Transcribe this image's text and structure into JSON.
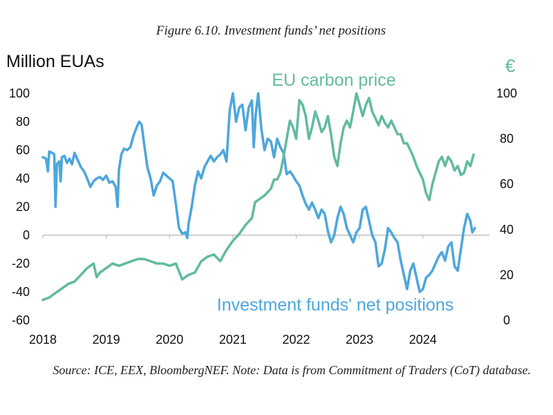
{
  "figure_title": "Figure 6.10. Investment funds’ net positions",
  "caption": "Source: ICE, EEX, BloombergNEF. Note: Data is from Commitment of Traders (CoT) database.",
  "colors": {
    "positions": "#4ea7dc",
    "price": "#63bb9f",
    "axis": "#b5b5b5",
    "text": "#111111"
  },
  "chart_data": {
    "type": "line",
    "left_axis_label": "Million EUAs",
    "right_axis_label": "€",
    "x_range": [
      2018,
      2025.05
    ],
    "x_ticks": [
      "2018",
      "2019",
      "2020",
      "2021",
      "2022",
      "2023",
      "2024"
    ],
    "y_left": {
      "min": -60,
      "max": 100,
      "ticks": [
        "100",
        "80",
        "60",
        "40",
        "20",
        "0",
        "-20",
        "-40",
        "-60"
      ]
    },
    "y_right": {
      "min": 0,
      "max": 100,
      "ticks": [
        "100",
        "80",
        "60",
        "40",
        "20",
        "0"
      ]
    },
    "series": [
      {
        "name": "Investment funds' net positions",
        "axis": "left",
        "points": [
          [
            2018.0,
            55
          ],
          [
            2018.05,
            54
          ],
          [
            2018.08,
            45
          ],
          [
            2018.1,
            59
          ],
          [
            2018.15,
            58
          ],
          [
            2018.18,
            57
          ],
          [
            2018.2,
            20
          ],
          [
            2018.22,
            50
          ],
          [
            2018.26,
            52
          ],
          [
            2018.28,
            38
          ],
          [
            2018.3,
            55
          ],
          [
            2018.34,
            56
          ],
          [
            2018.38,
            51
          ],
          [
            2018.42,
            54
          ],
          [
            2018.46,
            50
          ],
          [
            2018.5,
            58
          ],
          [
            2018.55,
            53
          ],
          [
            2018.6,
            48
          ],
          [
            2018.65,
            45
          ],
          [
            2018.7,
            40
          ],
          [
            2018.75,
            34
          ],
          [
            2018.8,
            38
          ],
          [
            2018.85,
            40
          ],
          [
            2018.9,
            41
          ],
          [
            2018.95,
            39
          ],
          [
            2019.0,
            42
          ],
          [
            2019.05,
            37
          ],
          [
            2019.1,
            38
          ],
          [
            2019.15,
            34
          ],
          [
            2019.18,
            20
          ],
          [
            2019.2,
            46
          ],
          [
            2019.24,
            57
          ],
          [
            2019.28,
            61
          ],
          [
            2019.33,
            60
          ],
          [
            2019.38,
            62
          ],
          [
            2019.43,
            70
          ],
          [
            2019.48,
            76
          ],
          [
            2019.52,
            80
          ],
          [
            2019.56,
            78
          ],
          [
            2019.6,
            64
          ],
          [
            2019.65,
            48
          ],
          [
            2019.7,
            40
          ],
          [
            2019.75,
            28
          ],
          [
            2019.8,
            35
          ],
          [
            2019.85,
            38
          ],
          [
            2019.9,
            44
          ],
          [
            2019.95,
            42
          ],
          [
            2020.0,
            40
          ],
          [
            2020.05,
            38
          ],
          [
            2020.1,
            22
          ],
          [
            2020.15,
            5
          ],
          [
            2020.2,
            1
          ],
          [
            2020.25,
            2
          ],
          [
            2020.28,
            -2
          ],
          [
            2020.3,
            8
          ],
          [
            2020.35,
            20
          ],
          [
            2020.4,
            35
          ],
          [
            2020.45,
            45
          ],
          [
            2020.5,
            40
          ],
          [
            2020.55,
            48
          ],
          [
            2020.6,
            52
          ],
          [
            2020.65,
            56
          ],
          [
            2020.7,
            52
          ],
          [
            2020.75,
            55
          ],
          [
            2020.8,
            57
          ],
          [
            2020.85,
            60
          ],
          [
            2020.9,
            52
          ],
          [
            2020.95,
            88
          ],
          [
            2021.0,
            100
          ],
          [
            2021.05,
            80
          ],
          [
            2021.1,
            90
          ],
          [
            2021.15,
            92
          ],
          [
            2021.2,
            74
          ],
          [
            2021.25,
            90
          ],
          [
            2021.3,
            95
          ],
          [
            2021.33,
            62
          ],
          [
            2021.36,
            85
          ],
          [
            2021.4,
            100
          ],
          [
            2021.45,
            75
          ],
          [
            2021.5,
            60
          ],
          [
            2021.55,
            68
          ],
          [
            2021.6,
            66
          ],
          [
            2021.65,
            55
          ],
          [
            2021.7,
            68
          ],
          [
            2021.75,
            62
          ],
          [
            2021.8,
            58
          ],
          [
            2021.85,
            43
          ],
          [
            2021.9,
            45
          ],
          [
            2021.95,
            42
          ],
          [
            2022.0,
            38
          ],
          [
            2022.05,
            35
          ],
          [
            2022.1,
            28
          ],
          [
            2022.15,
            22
          ],
          [
            2022.2,
            18
          ],
          [
            2022.25,
            23
          ],
          [
            2022.3,
            18
          ],
          [
            2022.35,
            12
          ],
          [
            2022.4,
            18
          ],
          [
            2022.45,
            15
          ],
          [
            2022.5,
            3
          ],
          [
            2022.55,
            -5
          ],
          [
            2022.6,
            0
          ],
          [
            2022.65,
            12
          ],
          [
            2022.7,
            20
          ],
          [
            2022.75,
            15
          ],
          [
            2022.8,
            5
          ],
          [
            2022.85,
            0
          ],
          [
            2022.9,
            -5
          ],
          [
            2022.95,
            2
          ],
          [
            2023.0,
            5
          ],
          [
            2023.05,
            18
          ],
          [
            2023.1,
            20
          ],
          [
            2023.15,
            10
          ],
          [
            2023.2,
            0
          ],
          [
            2023.25,
            -5
          ],
          [
            2023.3,
            -22
          ],
          [
            2023.35,
            -20
          ],
          [
            2023.4,
            -10
          ],
          [
            2023.45,
            5
          ],
          [
            2023.5,
            2
          ],
          [
            2023.55,
            -2
          ],
          [
            2023.6,
            -5
          ],
          [
            2023.65,
            -18
          ],
          [
            2023.7,
            -28
          ],
          [
            2023.75,
            -38
          ],
          [
            2023.8,
            -25
          ],
          [
            2023.85,
            -20
          ],
          [
            2023.9,
            -30
          ],
          [
            2023.95,
            -40
          ],
          [
            2024.0,
            -38
          ],
          [
            2024.05,
            -30
          ],
          [
            2024.1,
            -28
          ],
          [
            2024.15,
            -25
          ],
          [
            2024.2,
            -20
          ],
          [
            2024.25,
            -15
          ],
          [
            2024.3,
            -12
          ],
          [
            2024.35,
            -18
          ],
          [
            2024.4,
            -8
          ],
          [
            2024.45,
            -5
          ],
          [
            2024.5,
            -22
          ],
          [
            2024.55,
            -25
          ],
          [
            2024.6,
            -10
          ],
          [
            2024.65,
            5
          ],
          [
            2024.7,
            15
          ],
          [
            2024.75,
            10
          ],
          [
            2024.78,
            2
          ],
          [
            2024.82,
            5
          ]
        ]
      },
      {
        "name": "EU carbon price",
        "axis": "right",
        "points": [
          [
            2018.0,
            9
          ],
          [
            2018.1,
            10
          ],
          [
            2018.2,
            12
          ],
          [
            2018.3,
            14
          ],
          [
            2018.4,
            16
          ],
          [
            2018.5,
            17
          ],
          [
            2018.6,
            20
          ],
          [
            2018.7,
            23
          ],
          [
            2018.8,
            25
          ],
          [
            2018.85,
            19
          ],
          [
            2018.9,
            21
          ],
          [
            2019.0,
            23
          ],
          [
            2019.1,
            25
          ],
          [
            2019.2,
            24
          ],
          [
            2019.3,
            25
          ],
          [
            2019.4,
            26
          ],
          [
            2019.5,
            27
          ],
          [
            2019.6,
            27
          ],
          [
            2019.7,
            26
          ],
          [
            2019.8,
            25
          ],
          [
            2019.9,
            25
          ],
          [
            2020.0,
            24
          ],
          [
            2020.1,
            25
          ],
          [
            2020.2,
            18
          ],
          [
            2020.3,
            20
          ],
          [
            2020.4,
            21
          ],
          [
            2020.5,
            26
          ],
          [
            2020.6,
            28
          ],
          [
            2020.7,
            29
          ],
          [
            2020.8,
            26
          ],
          [
            2020.9,
            31
          ],
          [
            2021.0,
            35
          ],
          [
            2021.1,
            38
          ],
          [
            2021.2,
            42
          ],
          [
            2021.3,
            45
          ],
          [
            2021.35,
            52
          ],
          [
            2021.4,
            53
          ],
          [
            2021.5,
            55
          ],
          [
            2021.6,
            58
          ],
          [
            2021.65,
            62
          ],
          [
            2021.7,
            62
          ],
          [
            2021.75,
            65
          ],
          [
            2021.8,
            72
          ],
          [
            2021.85,
            80
          ],
          [
            2021.9,
            88
          ],
          [
            2021.95,
            85
          ],
          [
            2022.0,
            80
          ],
          [
            2022.05,
            97
          ],
          [
            2022.1,
            95
          ],
          [
            2022.15,
            90
          ],
          [
            2022.2,
            80
          ],
          [
            2022.25,
            85
          ],
          [
            2022.3,
            92
          ],
          [
            2022.35,
            88
          ],
          [
            2022.4,
            83
          ],
          [
            2022.45,
            85
          ],
          [
            2022.5,
            90
          ],
          [
            2022.55,
            82
          ],
          [
            2022.6,
            72
          ],
          [
            2022.65,
            68
          ],
          [
            2022.7,
            78
          ],
          [
            2022.75,
            85
          ],
          [
            2022.8,
            88
          ],
          [
            2022.85,
            85
          ],
          [
            2022.9,
            92
          ],
          [
            2022.95,
            100
          ],
          [
            2023.0,
            95
          ],
          [
            2023.05,
            90
          ],
          [
            2023.1,
            95
          ],
          [
            2023.15,
            98
          ],
          [
            2023.2,
            92
          ],
          [
            2023.25,
            89
          ],
          [
            2023.3,
            86
          ],
          [
            2023.35,
            90
          ],
          [
            2023.4,
            87
          ],
          [
            2023.45,
            85
          ],
          [
            2023.5,
            88
          ],
          [
            2023.55,
            85
          ],
          [
            2023.6,
            82
          ],
          [
            2023.65,
            82
          ],
          [
            2023.7,
            78
          ],
          [
            2023.75,
            78
          ],
          [
            2023.8,
            75
          ],
          [
            2023.85,
            72
          ],
          [
            2023.9,
            68
          ],
          [
            2023.95,
            65
          ],
          [
            2024.0,
            62
          ],
          [
            2024.05,
            56
          ],
          [
            2024.1,
            53
          ],
          [
            2024.15,
            60
          ],
          [
            2024.2,
            65
          ],
          [
            2024.25,
            70
          ],
          [
            2024.3,
            72
          ],
          [
            2024.35,
            68
          ],
          [
            2024.4,
            72
          ],
          [
            2024.45,
            70
          ],
          [
            2024.5,
            66
          ],
          [
            2024.55,
            68
          ],
          [
            2024.6,
            64
          ],
          [
            2024.65,
            65
          ],
          [
            2024.7,
            70
          ],
          [
            2024.75,
            68
          ],
          [
            2024.8,
            73
          ]
        ]
      }
    ],
    "annotations": {
      "price_label": "EU carbon price",
      "positions_label": "Investment funds' net positions"
    }
  }
}
